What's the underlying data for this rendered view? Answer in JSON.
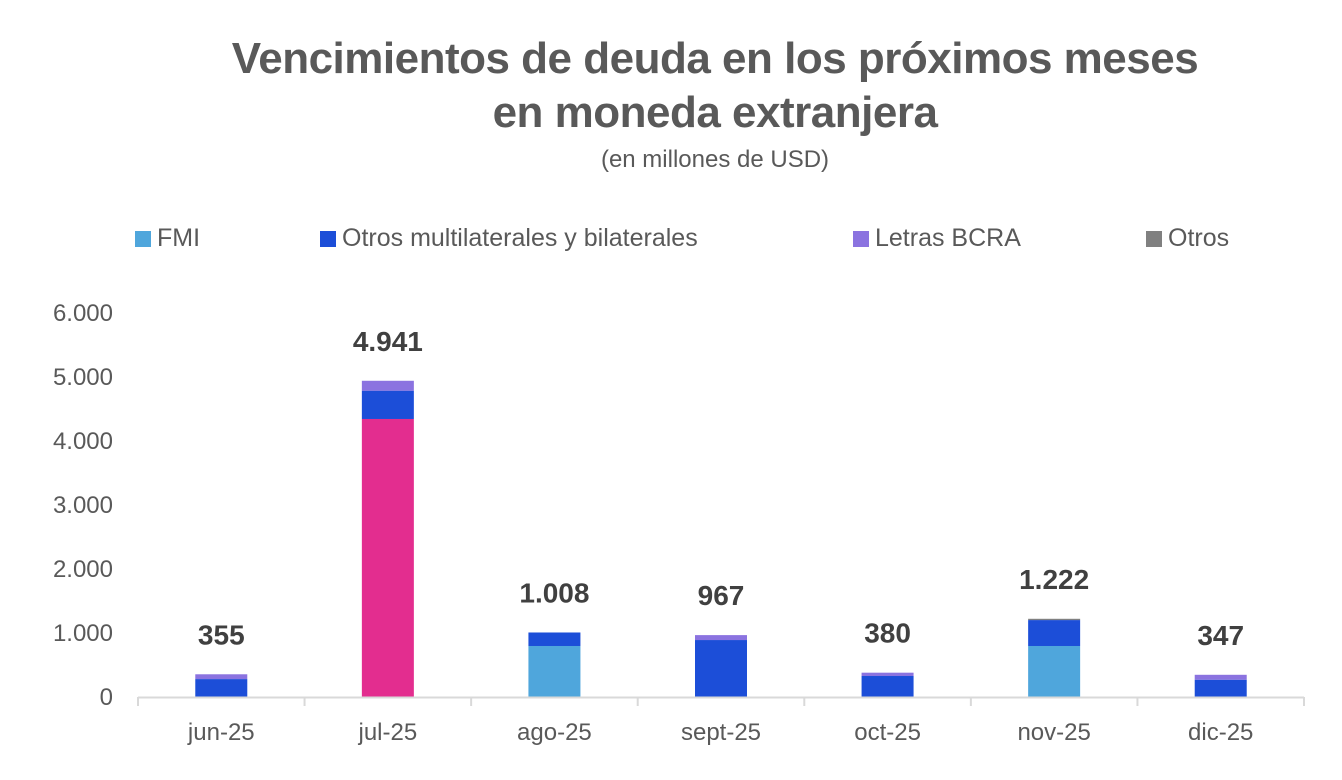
{
  "chart_data": {
    "type": "bar",
    "stacked": true,
    "title": "Vencimientos de deuda en los próximos meses en moneda extranjera",
    "title_lines": [
      "Vencimientos de deuda en los próximos meses",
      "en moneda extranjera"
    ],
    "subtitle": "(en millones de USD)",
    "xlabel": "",
    "ylabel": "",
    "ylim": [
      0,
      6000
    ],
    "yticks": [
      0,
      1000,
      2000,
      3000,
      4000,
      5000,
      6000
    ],
    "ytick_labels": [
      "0",
      "1.000",
      "2.000",
      "3.000",
      "4.000",
      "5.000",
      "6.000"
    ],
    "grid": false,
    "legend_position": "top",
    "categories": [
      "jun-25",
      "jul-25",
      "ago-25",
      "sept-25",
      "oct-25",
      "nov-25",
      "dic-25"
    ],
    "series": [
      {
        "name": "FMI",
        "color": "#4FA6DC",
        "values": [
          0,
          4344,
          797,
          0,
          0,
          797,
          0
        ]
      },
      {
        "name": "Otros multilaterales y bilaterales",
        "color": "#1C4ED8",
        "values": [
          280,
          442,
          211,
          890,
          328,
          405,
          270
        ]
      },
      {
        "name": "Letras BCRA",
        "color": "#8B73E0",
        "values": [
          75,
          155,
          0,
          77,
          52,
          0,
          77
        ]
      },
      {
        "name": "Otros",
        "color": "#808080",
        "values": [
          0,
          0,
          0,
          0,
          0,
          20,
          0
        ]
      }
    ],
    "highlight": {
      "category": "jul-25",
      "series": "FMI",
      "color": "#E32D8F"
    },
    "totals": [
      355,
      4941,
      1008,
      967,
      380,
      1222,
      347
    ],
    "total_labels": [
      "355",
      "4.941",
      "1.008",
      "967",
      "380",
      "1.222",
      "347"
    ]
  }
}
